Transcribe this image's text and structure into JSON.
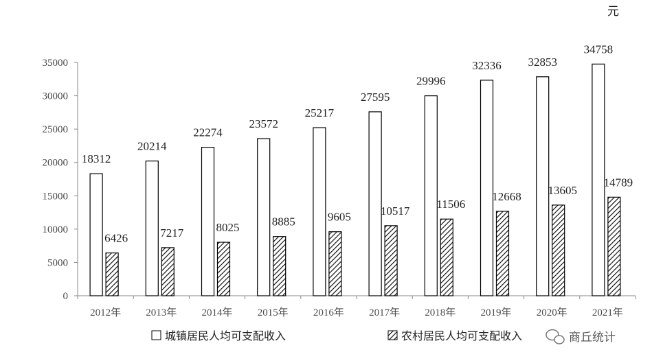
{
  "chart_data": {
    "type": "bar",
    "unit": "元",
    "categories": [
      "2012年",
      "2013年",
      "2014年",
      "2015年",
      "2016年",
      "2017年",
      "2018年",
      "2019年",
      "2020年",
      "2021年"
    ],
    "series": [
      {
        "name": "城镇居民人均可支配收入",
        "values": [
          18312,
          20214,
          22274,
          23572,
          25217,
          27595,
          29996,
          32336,
          32853,
          34758
        ],
        "fill": "#ffffff"
      },
      {
        "name": "农村居民人均可支配收入",
        "values": [
          6426,
          7217,
          8025,
          8885,
          9605,
          10517,
          11506,
          12668,
          13605,
          14789
        ],
        "fill": "hatch"
      }
    ],
    "yticks": [
      "0",
      "5000",
      "10000",
      "15000",
      "20000",
      "25000",
      "30000",
      "35000"
    ],
    "ylim": [
      0,
      35000
    ],
    "legend_position": "bottom",
    "grid": false
  },
  "watermark": {
    "text": "商丘统计",
    "icon": "wechat-icon"
  }
}
